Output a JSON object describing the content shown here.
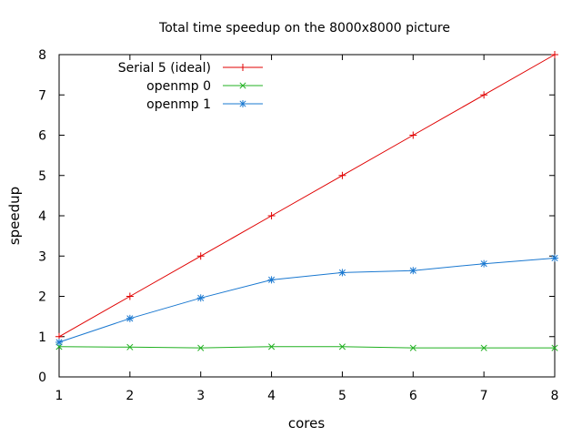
{
  "chart_data": {
    "type": "line",
    "title": "Total time speedup on the 8000x8000 picture",
    "xlabel": "cores",
    "ylabel": "speedup",
    "xlim": [
      1,
      8
    ],
    "ylim": [
      0,
      8
    ],
    "xticks": [
      1,
      2,
      3,
      4,
      5,
      6,
      7,
      8
    ],
    "yticks": [
      0,
      1,
      2,
      3,
      4,
      5,
      6,
      7,
      8
    ],
    "grid": false,
    "legend_position": "top-left",
    "series": [
      {
        "name": "Serial 5 (ideal)",
        "color": "#e00000",
        "marker": "plus",
        "x": [
          1,
          2,
          3,
          4,
          5,
          6,
          7,
          8
        ],
        "y": [
          1,
          2,
          3,
          4,
          5,
          6,
          7,
          8
        ]
      },
      {
        "name": "openmp 0",
        "color": "#20b020",
        "marker": "cross",
        "x": [
          1,
          2,
          3,
          4,
          5,
          6,
          7,
          8
        ],
        "y": [
          0.75,
          0.74,
          0.72,
          0.75,
          0.75,
          0.72,
          0.72,
          0.72
        ]
      },
      {
        "name": "openmp 1",
        "color": "#1a78d0",
        "marker": "star",
        "x": [
          1,
          2,
          3,
          4,
          5,
          6,
          7,
          8
        ],
        "y": [
          0.86,
          1.45,
          1.96,
          2.41,
          2.59,
          2.64,
          2.81,
          2.95
        ]
      }
    ]
  }
}
